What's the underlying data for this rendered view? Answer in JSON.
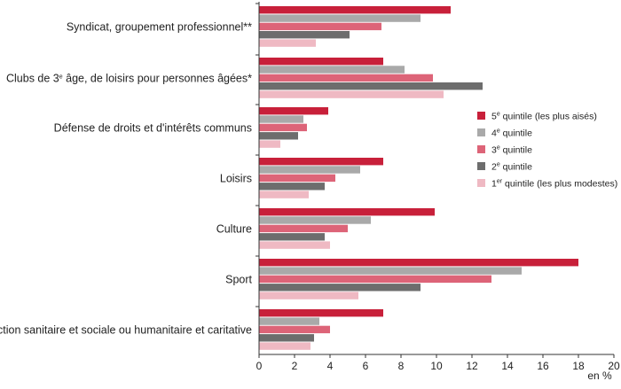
{
  "chart_data": {
    "type": "bar",
    "orientation": "horizontal",
    "categories": [
      "Syndicat, groupement professionnel**",
      "Clubs de 3e âge, de loisirs pour personnes âgées*",
      "Défense de droits et d'intérêts communs",
      "Loisirs",
      "Culture",
      "Sport",
      "Action sanitaire et sociale ou humanitaire et caritative"
    ],
    "series": [
      {
        "name": "5e quintile (les plus aisés)",
        "color": "#c8203a",
        "values": [
          10.8,
          7.0,
          3.9,
          7.0,
          9.9,
          18.0,
          7.0
        ]
      },
      {
        "name": "4e quintile",
        "color": "#a9a9a9",
        "values": [
          9.1,
          8.2,
          2.5,
          5.7,
          6.3,
          14.8,
          3.4
        ]
      },
      {
        "name": "3e quintile",
        "color": "#dd6478",
        "values": [
          6.9,
          9.8,
          2.7,
          4.3,
          5.0,
          13.1,
          4.0
        ]
      },
      {
        "name": "2e quintile",
        "color": "#6d6d6d",
        "values": [
          5.1,
          12.6,
          2.2,
          3.7,
          3.7,
          9.1,
          3.1
        ]
      },
      {
        "name": "1er quintile (les plus modestes)",
        "color": "#efb9c3",
        "values": [
          3.2,
          10.4,
          1.2,
          2.8,
          4.0,
          5.6,
          2.9
        ]
      }
    ],
    "xlim": [
      0,
      20
    ],
    "xticks": [
      0,
      2,
      4,
      6,
      8,
      10,
      12,
      14,
      16,
      18,
      20
    ],
    "xunit": "en %",
    "grid": false,
    "legend_position": "right"
  }
}
